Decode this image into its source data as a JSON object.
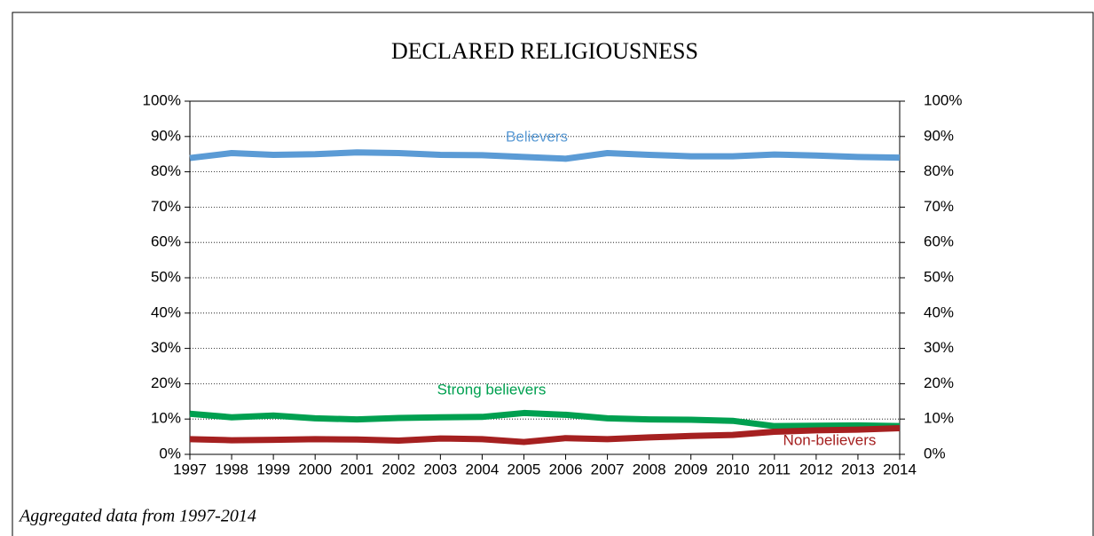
{
  "chart_data": {
    "type": "line",
    "title": "DECLARED RELIGIOUSNESS",
    "note": "Aggregated data from 1997-2014",
    "categories": [
      "1997",
      "1998",
      "1999",
      "2000",
      "2001",
      "2002",
      "2003",
      "2004",
      "2005",
      "2006",
      "2007",
      "2008",
      "2009",
      "2010",
      "2011",
      "2012",
      "2013",
      "2014"
    ],
    "series": [
      {
        "name": "Believers",
        "color": "#5b9bd5",
        "values": [
          83.9,
          85.3,
          84.8,
          85.0,
          85.5,
          85.3,
          84.8,
          84.7,
          84.2,
          83.7,
          85.3,
          84.8,
          84.4,
          84.4,
          84.9,
          84.6,
          84.2,
          84.0
        ]
      },
      {
        "name": "Strong believers",
        "color": "#00a050",
        "values": [
          11.5,
          10.5,
          11.0,
          10.2,
          9.9,
          10.3,
          10.5,
          10.6,
          11.7,
          11.2,
          10.2,
          9.9,
          9.8,
          9.5,
          8.0,
          8.1,
          8.2,
          8.0
        ]
      },
      {
        "name": "Non-believers",
        "color": "#a52020",
        "values": [
          4.3,
          4.0,
          4.1,
          4.3,
          4.2,
          3.9,
          4.5,
          4.3,
          3.5,
          4.6,
          4.3,
          4.8,
          5.2,
          5.5,
          6.4,
          6.8,
          7.0,
          7.4
        ]
      }
    ],
    "ylim": [
      0,
      100
    ],
    "yticks": [
      {
        "value": 0,
        "label": "0%"
      },
      {
        "value": 10,
        "label": "10%"
      },
      {
        "value": 20,
        "label": "20%"
      },
      {
        "value": 30,
        "label": "30%"
      },
      {
        "value": 40,
        "label": "40%"
      },
      {
        "value": 50,
        "label": "50%"
      },
      {
        "value": 60,
        "label": "60%"
      },
      {
        "value": 70,
        "label": "70%"
      },
      {
        "value": 80,
        "label": "80%"
      },
      {
        "value": 90,
        "label": "90%"
      },
      {
        "value": 100,
        "label": "100%"
      }
    ],
    "y2lim": [
      0,
      100
    ],
    "y2ticks": [
      {
        "value": 0,
        "label": "0%"
      },
      {
        "value": 10,
        "label": "10%"
      },
      {
        "value": 20,
        "label": "20%"
      },
      {
        "value": 30,
        "label": "30%"
      },
      {
        "value": 40,
        "label": "40%"
      },
      {
        "value": 50,
        "label": "50%"
      },
      {
        "value": 60,
        "label": "60%"
      },
      {
        "value": 70,
        "label": "70%"
      },
      {
        "value": 80,
        "label": "80%"
      },
      {
        "value": 90,
        "label": "90%"
      },
      {
        "value": 100,
        "label": "100%"
      }
    ],
    "grid": true
  }
}
